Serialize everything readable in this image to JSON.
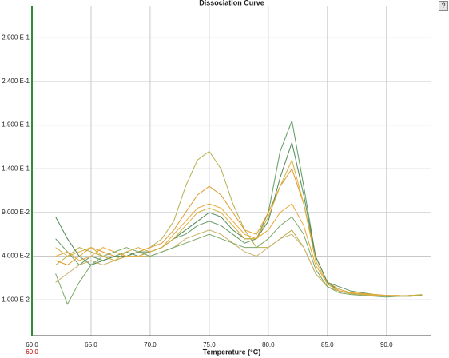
{
  "chart_data": {
    "type": "line",
    "title": "Dissociation Curve",
    "x_label": "Temperature (°C)",
    "cursor_label": "60.0",
    "x": [
      62,
      63,
      64,
      65,
      66,
      67,
      68,
      69,
      70,
      71,
      72,
      73,
      74,
      75,
      76,
      77,
      78,
      79,
      80,
      81,
      82,
      83,
      84,
      85,
      86,
      87,
      88,
      89,
      90,
      91,
      92,
      93
    ],
    "series": [
      {
        "color": "#5f9a60",
        "values": [
          0.06,
          0.045,
          0.03,
          0.04,
          0.035,
          0.04,
          0.045,
          0.04,
          0.045,
          0.05,
          0.06,
          0.065,
          0.075,
          0.08,
          0.075,
          0.065,
          0.055,
          0.06,
          0.09,
          0.16,
          0.195,
          0.12,
          0.04,
          0.01,
          0.005,
          0.0,
          -0.002,
          -0.004,
          -0.005,
          -0.006,
          -0.006,
          -0.005
        ]
      },
      {
        "color": "#b4b04a",
        "values": [
          0.03,
          0.04,
          0.05,
          0.045,
          0.04,
          0.035,
          0.04,
          0.045,
          0.05,
          0.06,
          0.08,
          0.12,
          0.15,
          0.16,
          0.14,
          0.1,
          0.07,
          0.05,
          0.05,
          0.06,
          0.07,
          0.05,
          0.02,
          0.005,
          0.0,
          -0.002,
          -0.003,
          -0.004,
          -0.005,
          -0.005,
          -0.006,
          -0.005
        ]
      },
      {
        "color": "#e09a30",
        "values": [
          0.035,
          0.03,
          0.04,
          0.05,
          0.045,
          0.04,
          0.04,
          0.045,
          0.05,
          0.055,
          0.07,
          0.09,
          0.11,
          0.12,
          0.11,
          0.09,
          0.07,
          0.065,
          0.09,
          0.12,
          0.14,
          0.1,
          0.04,
          0.01,
          0.002,
          -0.002,
          -0.003,
          -0.004,
          -0.005,
          -0.006,
          -0.005,
          -0.005
        ]
      },
      {
        "color": "#4f8a58",
        "values": [
          0.085,
          0.06,
          0.04,
          0.03,
          0.035,
          0.04,
          0.04,
          0.045,
          0.045,
          0.05,
          0.06,
          0.07,
          0.08,
          0.09,
          0.085,
          0.07,
          0.06,
          0.06,
          0.08,
          0.13,
          0.17,
          0.11,
          0.04,
          0.01,
          0.0,
          -0.003,
          -0.004,
          -0.005,
          -0.006,
          -0.006,
          -0.005,
          -0.005
        ]
      },
      {
        "color": "#c8b066",
        "values": [
          0.01,
          0.02,
          0.03,
          0.035,
          0.03,
          0.035,
          0.04,
          0.04,
          0.04,
          0.045,
          0.05,
          0.06,
          0.065,
          0.07,
          0.065,
          0.055,
          0.045,
          0.04,
          0.05,
          0.06,
          0.065,
          0.05,
          0.02,
          0.005,
          0.0,
          -0.002,
          -0.004,
          -0.005,
          -0.005,
          -0.006,
          -0.006,
          -0.004
        ]
      },
      {
        "color": "#e8a838",
        "values": [
          0.04,
          0.045,
          0.035,
          0.04,
          0.05,
          0.045,
          0.04,
          0.04,
          0.045,
          0.05,
          0.065,
          0.08,
          0.095,
          0.1,
          0.095,
          0.08,
          0.065,
          0.06,
          0.07,
          0.09,
          0.1,
          0.075,
          0.03,
          0.008,
          0.0,
          -0.002,
          -0.003,
          -0.004,
          -0.005,
          -0.005,
          -0.006,
          -0.004
        ]
      },
      {
        "color": "#7aa868",
        "values": [
          0.02,
          -0.015,
          0.01,
          0.03,
          0.04,
          0.045,
          0.05,
          0.045,
          0.04,
          0.045,
          0.05,
          0.055,
          0.06,
          0.065,
          0.06,
          0.055,
          0.05,
          0.05,
          0.06,
          0.075,
          0.085,
          0.065,
          0.025,
          0.005,
          -0.002,
          -0.004,
          -0.005,
          -0.006,
          -0.007,
          -0.006,
          -0.005,
          -0.005
        ]
      },
      {
        "color": "#d8b040",
        "values": [
          0.05,
          0.04,
          0.045,
          0.05,
          0.04,
          0.035,
          0.045,
          0.05,
          0.045,
          0.05,
          0.06,
          0.075,
          0.09,
          0.095,
          0.09,
          0.075,
          0.06,
          0.06,
          0.085,
          0.12,
          0.15,
          0.1,
          0.035,
          0.008,
          0.0,
          -0.003,
          -0.004,
          -0.005,
          -0.005,
          -0.006,
          -0.005,
          -0.004
        ]
      }
    ],
    "xlim": [
      60,
      93.8
    ],
    "xticks": [
      {
        "value": 60,
        "label": "60.0"
      },
      {
        "value": 65,
        "label": "65.0"
      },
      {
        "value": 70,
        "label": "70.0"
      },
      {
        "value": 75,
        "label": "75.0"
      },
      {
        "value": 80,
        "label": "80.0"
      },
      {
        "value": 85,
        "label": "85.0"
      },
      {
        "value": 90,
        "label": "90.0"
      }
    ],
    "ylim": [
      -0.051,
      0.326
    ],
    "yticks": [
      {
        "value": 0.29,
        "label": "2.900 E-1"
      },
      {
        "value": 0.24,
        "label": "2.400 E-1"
      },
      {
        "value": 0.19,
        "label": "1.900 E-1"
      },
      {
        "value": 0.14,
        "label": "1.400 E-1"
      },
      {
        "value": 0.09,
        "label": "9.000 E-2"
      },
      {
        "value": 0.04,
        "label": "4.000 E-2"
      },
      {
        "value": -0.01,
        "label": "-1.000 E-2"
      }
    ],
    "grid": true
  },
  "help_button": "?"
}
